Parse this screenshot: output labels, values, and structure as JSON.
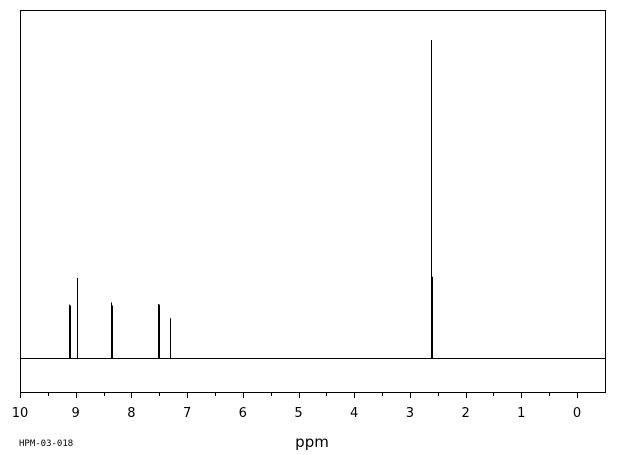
{
  "chart_data": {
    "type": "line",
    "title": "",
    "xlabel": "ppm",
    "ylabel": "",
    "sample_id": "HPM-03-018",
    "xlim": [
      10,
      0
    ],
    "x_ticks": [
      "10",
      "9",
      "8",
      "7",
      "6",
      "5",
      "4",
      "3",
      "2",
      "1",
      "0"
    ],
    "ylim": [
      0,
      1
    ],
    "grid": false,
    "legend": "none",
    "line_color": "#000000",
    "peaks": [
      {
        "ppm": 9.12,
        "height": 0.168
      },
      {
        "ppm": 9.1,
        "height": 0.165
      },
      {
        "ppm": 8.98,
        "height": 0.252
      },
      {
        "ppm": 8.97,
        "height": 0.02
      },
      {
        "ppm": 8.37,
        "height": 0.03
      },
      {
        "ppm": 8.36,
        "height": 0.175
      },
      {
        "ppm": 8.35,
        "height": 0.165
      },
      {
        "ppm": 8.34,
        "height": 0.035
      },
      {
        "ppm": 7.53,
        "height": 0.17
      },
      {
        "ppm": 7.52,
        "height": 0.145
      },
      {
        "ppm": 7.51,
        "height": 0.15
      },
      {
        "ppm": 7.5,
        "height": 0.168
      },
      {
        "ppm": 7.31,
        "height": 0.125
      },
      {
        "ppm": 7.3,
        "height": 0.115
      },
      {
        "ppm": 2.62,
        "height": 1.0
      },
      {
        "ppm": 2.61,
        "height": 0.255
      }
    ]
  }
}
